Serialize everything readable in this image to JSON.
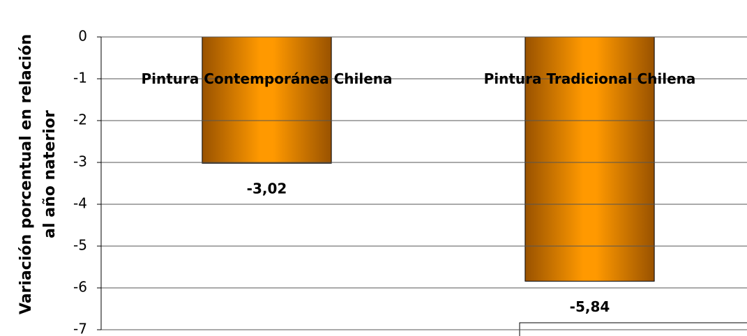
{
  "chart_data": {
    "type": "bar",
    "ylabel": [
      "Variación porcentual en relación",
      "al año naterior"
    ],
    "categories": [
      "Pintura Contemporánea Chilena",
      "Pintura Tradicional Chilena"
    ],
    "values": [
      -3.02,
      -5.84
    ],
    "value_labels": [
      "-3,02",
      "-5,84"
    ],
    "color": "#ff9900",
    "ylim": [
      -7,
      0
    ],
    "yticks": [
      0,
      -1,
      -2,
      -3,
      -4,
      -5,
      -6,
      -7
    ],
    "grid": true
  }
}
